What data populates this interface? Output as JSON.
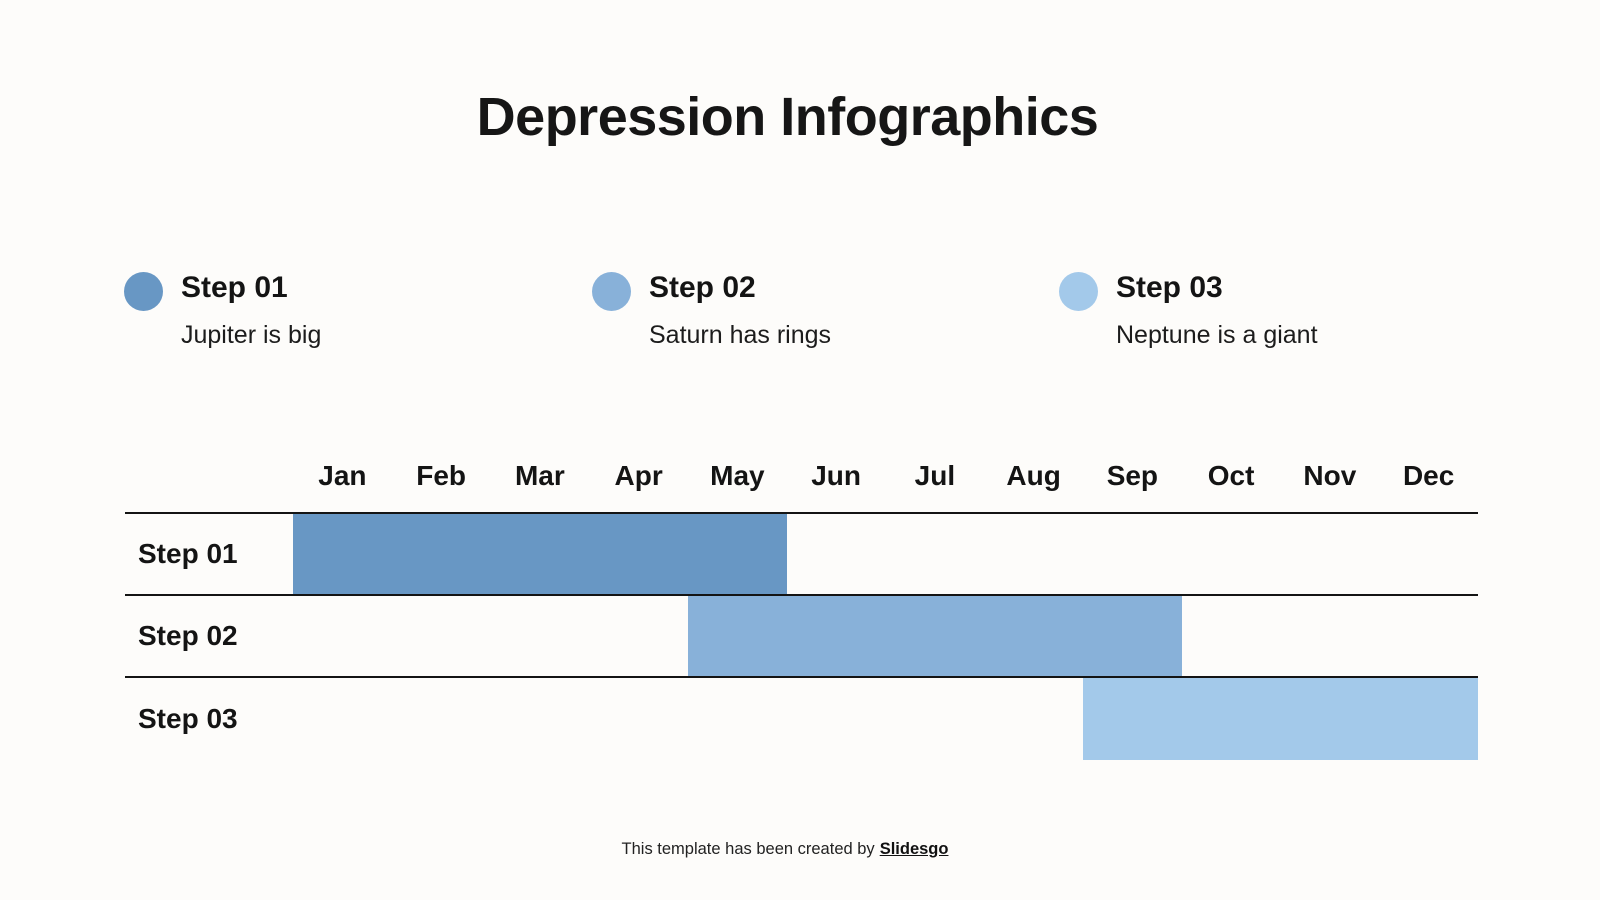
{
  "slide": {
    "title": "Depression Infographics",
    "background_color": "#fdfcfa"
  },
  "legend": {
    "items": [
      {
        "label": "Step 01",
        "description": "Jupiter is big",
        "color": "#6897c4"
      },
      {
        "label": "Step 02",
        "description": "Saturn has rings",
        "color": "#88b1d9"
      },
      {
        "label": "Step 03",
        "description": "Neptune is a giant",
        "color": "#a3c9ea"
      }
    ]
  },
  "chart_data": {
    "type": "bar",
    "variant": "gantt-timeline",
    "title": "Depression Infographics",
    "months": [
      "Jan",
      "Feb",
      "Mar",
      "Apr",
      "May",
      "Jun",
      "Jul",
      "Aug",
      "Sep",
      "Oct",
      "Nov",
      "Dec"
    ],
    "rows": [
      {
        "label": "Step 01",
        "start_month": "Jan",
        "end_month": "May",
        "start_index": 0,
        "span_months": 5,
        "color": "#6897c4"
      },
      {
        "label": "Step 02",
        "start_month": "May",
        "end_month": "Sep",
        "start_index": 4,
        "span_months": 5,
        "color": "#88b1d9"
      },
      {
        "label": "Step 03",
        "start_month": "Sep",
        "end_month": "Dec",
        "start_index": 8,
        "span_months": 4,
        "color": "#a3c9ea"
      }
    ],
    "grid": "horizontal row separator lines only, no bottom line under last row",
    "legend_position": "above chart",
    "axis_range": [
      "Jan",
      "Dec"
    ]
  },
  "footer": {
    "text": "This template has been created by",
    "brand": "Slidesgo"
  }
}
